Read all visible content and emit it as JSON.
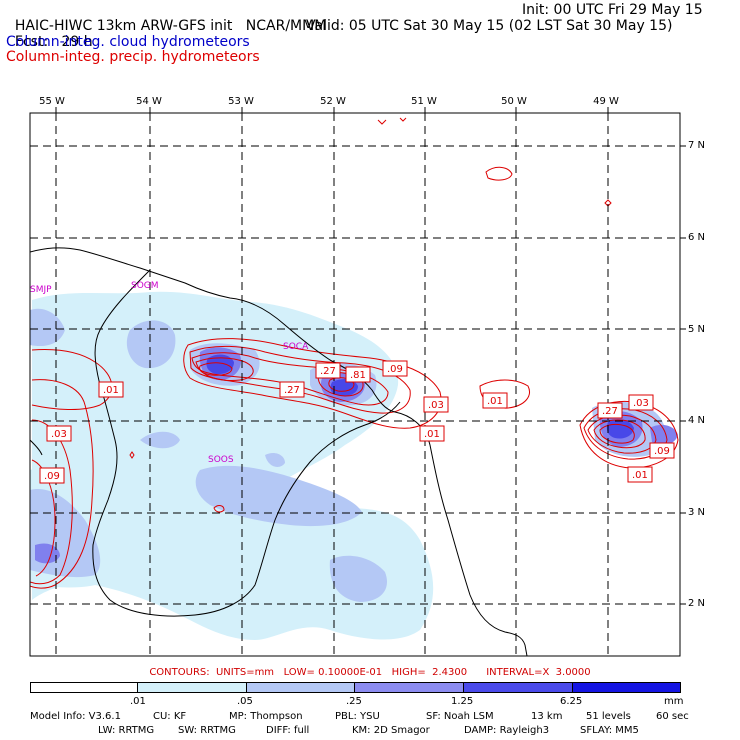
{
  "header": {
    "title": "HAIC-HIWC 13km ARW-GFS init",
    "org": "NCAR/MMM",
    "init": "Init: 00 UTC Fri 29 May 15",
    "fcst_label": "Fcst:",
    "fcst_value": "29 h",
    "valid": "Valid: 05 UTC Sat 30 May 15 (02 LST Sat 30 May 15)",
    "field1": "Column-integ. cloud hydrometeors",
    "field2": "Column-integ. precip. hydrometeors",
    "field1_color": "#0000c8",
    "field2_color": "#dd0000"
  },
  "axes": {
    "lon_labels": [
      "55 W",
      "54 W",
      "53 W",
      "52 W",
      "51 W",
      "50 W",
      "49 W"
    ],
    "lat_labels": [
      "7 N",
      "6 N",
      "5 N",
      "4 N",
      "3 N",
      "2 N"
    ]
  },
  "place_labels": [
    "SMJP",
    "SOGM",
    "SOCA",
    "SOOS"
  ],
  "contour_labels": [
    ".01",
    ".03",
    ".09",
    ".27",
    ".27",
    ".81",
    ".09",
    ".03",
    ".01",
    ".01",
    ".27",
    ".03",
    ".09",
    ".01"
  ],
  "contour_info": "CONTOURS:  UNITS=mm   LOW= 0.10000E-01   HIGH=  2.4300      INTERVAL=X  3.0000",
  "colorbar": {
    "ticks": [
      ".01",
      ".05",
      ".25",
      "1.25",
      "6.25"
    ],
    "units": "mm",
    "colors": [
      "#ffffff",
      "#d4f0fa",
      "#b4c8f5",
      "#8c8cf0",
      "#6060ec",
      "#3232e6",
      "#1010e0"
    ]
  },
  "footer": {
    "line1": [
      "Model Info: V3.6.1",
      "CU: KF",
      "MP: Thompson",
      "PBL: YSU",
      "SF: Noah LSM",
      "13 km",
      "51 levels",
      "60 sec"
    ],
    "line2": [
      "LW: RRTMG",
      "SW: RRTMG",
      "DIFF: full",
      "KM: 2D Smagor",
      "DAMP: Rayleigh3",
      "SFLAY: MM5"
    ]
  }
}
